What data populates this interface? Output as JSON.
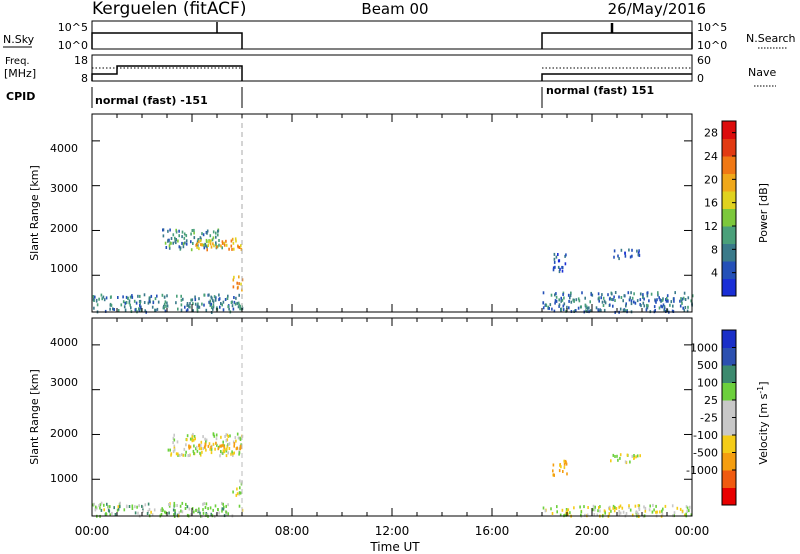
{
  "header": {
    "station": "Kerguelen (fitACF)",
    "beam": "Beam 00",
    "date": "26/May/2016"
  },
  "top_panels": {
    "nsky_label": "N.Sky",
    "nsky_ticks": [
      "10^5",
      "10^0"
    ],
    "nsearch_label": "N.Search",
    "nsearch_ticks": [
      "10^5",
      "10^0"
    ],
    "freq_label": "Freq.",
    "freq_unit": "[MHz]",
    "freq_ticks": [
      "18",
      "8"
    ],
    "nave_label": "Nave",
    "nave_ticks": [
      "60",
      "0"
    ],
    "cpid_label": "CPID",
    "cpid_segments": [
      {
        "label": "normal (fast) -151",
        "start_h": 0,
        "end_h": 6
      },
      {
        "label": "normal (fast) 151",
        "start_h": 18,
        "end_h": 24
      }
    ]
  },
  "x_axis": {
    "label": "Time UT",
    "ticks": [
      "00:00",
      "04:00",
      "08:00",
      "12:00",
      "16:00",
      "20:00",
      "00:00"
    ]
  },
  "colors": {
    "power": [
      "#1a2fd6",
      "#2450b8",
      "#3a7a8a",
      "#4aa07a",
      "#7cc83c",
      "#e0d21e",
      "#f0a81a",
      "#f07814",
      "#e23a12",
      "#dc0c0c"
    ],
    "velocity": [
      "#e80000",
      "#f05a10",
      "#f59e10",
      "#f4cc18",
      "#c8c8c8",
      "#c8c8c8",
      "#6cd03c",
      "#3c8a6e",
      "#2c50b0",
      "#1a2fc8"
    ]
  },
  "chart_data": [
    {
      "type": "heatmap",
      "title": "Power",
      "xlabel": "Time UT",
      "ylabel": "Slant Range [km]",
      "xlim": [
        0,
        24
      ],
      "ylim": [
        180,
        4600
      ],
      "yticks": [
        "1000",
        "2000",
        "3000",
        "4000"
      ],
      "colorbar": {
        "label": "Power [dB]",
        "range": [
          0,
          30
        ],
        "ticks": [
          "4",
          "8",
          "12",
          "16",
          "20",
          "24",
          "28"
        ]
      },
      "regions": [
        {
          "t0": 0.0,
          "t1": 6.0,
          "r0": 200,
          "r1": 600,
          "value": 8
        },
        {
          "t0": 2.8,
          "t1": 5.2,
          "r0": 1600,
          "r1": 2050,
          "value": 9
        },
        {
          "t0": 4.1,
          "t1": 6.0,
          "r0": 1600,
          "r1": 1850,
          "value": 20
        },
        {
          "t0": 5.6,
          "t1": 6.0,
          "r0": 650,
          "r1": 1000,
          "value": 20
        },
        {
          "t0": 18.0,
          "t1": 24.0,
          "r0": 200,
          "r1": 650,
          "value": 7
        },
        {
          "t0": 18.4,
          "t1": 19.0,
          "r0": 1100,
          "r1": 1500,
          "value": 5
        },
        {
          "t0": 20.7,
          "t1": 21.9,
          "r0": 1400,
          "r1": 1600,
          "value": 5
        }
      ]
    },
    {
      "type": "heatmap",
      "title": "Velocity",
      "xlabel": "Time UT",
      "ylabel": "Slant Range [km]",
      "xlim": [
        0,
        24
      ],
      "ylim": [
        180,
        4600
      ],
      "yticks": [
        "1000",
        "2000",
        "3000",
        "4000"
      ],
      "colorbar": {
        "label": "Velocity [m s^-1]",
        "ticks": [
          "1000",
          "500",
          "100",
          "25",
          "-25",
          "-100",
          "-500",
          "-1000"
        ]
      },
      "regions": [
        {
          "t0": 0.0,
          "t1": 6.0,
          "r0": 200,
          "r1": 500,
          "value": 50
        },
        {
          "t0": 3.0,
          "t1": 6.0,
          "r0": 1550,
          "r1": 2050,
          "value": 0
        },
        {
          "t0": 3.6,
          "t1": 6.0,
          "r0": 1700,
          "r1": 1850,
          "value": -150
        },
        {
          "t0": 5.6,
          "t1": 6.0,
          "r0": 650,
          "r1": 1000,
          "value": 0
        },
        {
          "t0": 18.0,
          "t1": 24.0,
          "r0": 200,
          "r1": 450,
          "value": 0
        },
        {
          "t0": 18.4,
          "t1": 19.0,
          "r0": 1100,
          "r1": 1450,
          "value": -150
        },
        {
          "t0": 20.7,
          "t1": 21.9,
          "r0": 1400,
          "r1": 1600,
          "value": 0
        }
      ]
    }
  ]
}
